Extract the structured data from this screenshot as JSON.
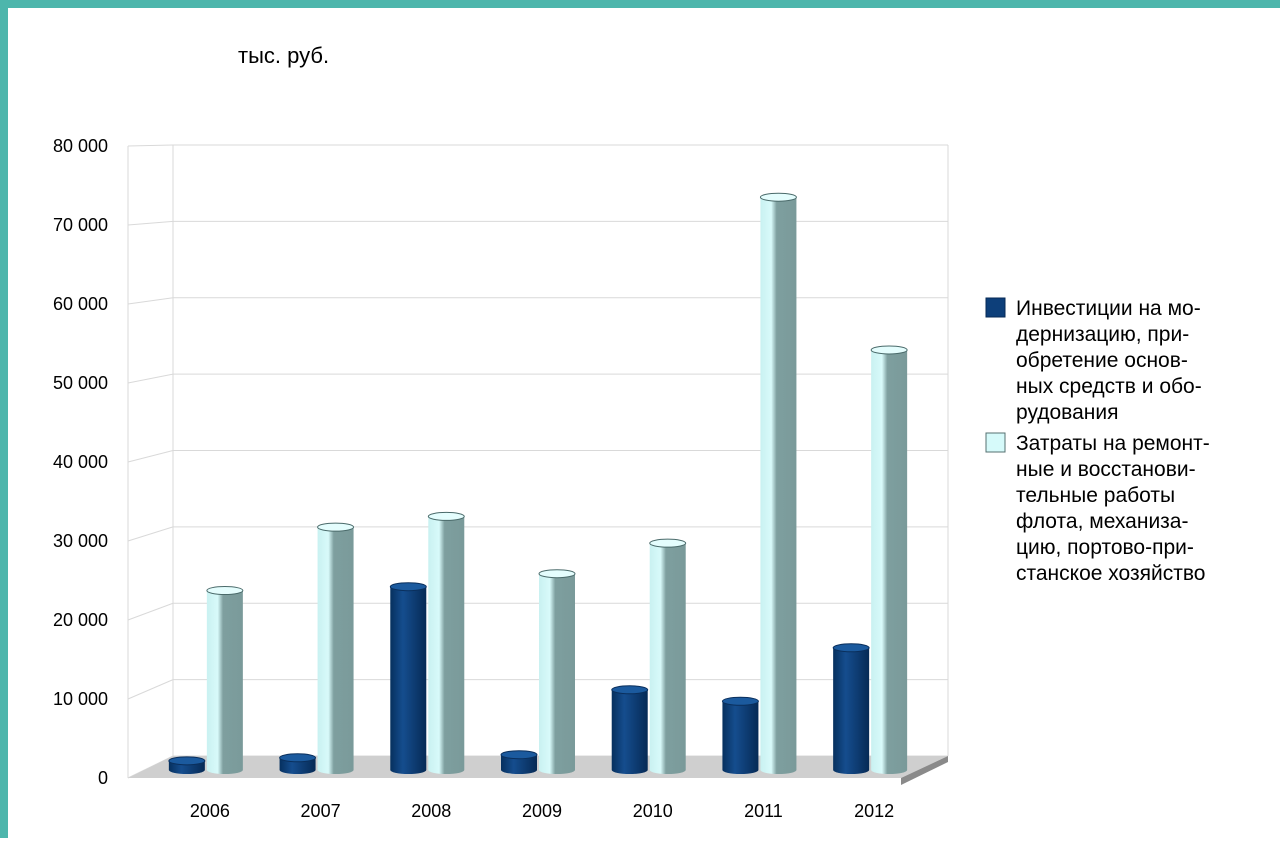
{
  "chart_data": {
    "type": "bar",
    "title": "",
    "unit_label": "тыс. руб.",
    "xlabel": "",
    "ylabel": "",
    "ylim": [
      0,
      80000
    ],
    "y_ticks": [
      "0",
      "10 000",
      "20 000",
      "30 000",
      "40 000",
      "50 000",
      "60 000",
      "70 000",
      "80 000"
    ],
    "categories": [
      "2006",
      "2007",
      "2008",
      "2009",
      "2010",
      "2011",
      "2012"
    ],
    "series": [
      {
        "name": "Инвестиции на модернизацию, приобретение основных средств и оборудования",
        "legend_lines": [
          "Инвестиции на мо-",
          "дернизацию, при-",
          "обретение основ-",
          "ных средств и обо-",
          "рудования"
        ],
        "values": [
          1200,
          1600,
          24000,
          2000,
          10500,
          9000,
          16000
        ],
        "color": "#0d3f7a"
      },
      {
        "name": "Затраты на ремонтные и восстановительные работы флота, механизацию, портово-пристанское хозяйство",
        "legend_lines": [
          "Затраты на ремонт-",
          "ные и восстанови-",
          "тельные работы",
          "флота, механиза-",
          "цию, портово-при-",
          "станское хозяйство"
        ],
        "values": [
          23500,
          31800,
          33200,
          25700,
          29700,
          75000,
          55000
        ],
        "color": "#cdf5f5"
      }
    ],
    "grid": true,
    "legend_position": "right"
  }
}
